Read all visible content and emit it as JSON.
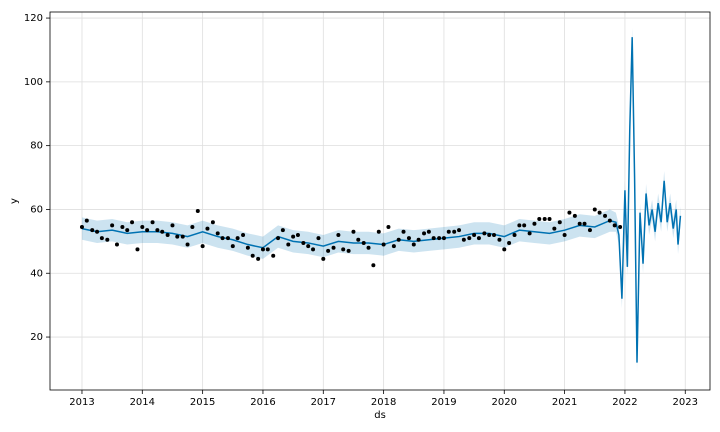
{
  "chart_data": {
    "type": "forecast",
    "xlabel": "ds",
    "ylabel": "y",
    "xlim": [
      2012.47,
      2023.41
    ],
    "ylim": [
      3.4,
      121.9
    ],
    "xticks": [
      2013,
      2014,
      2015,
      2016,
      2017,
      2018,
      2019,
      2020,
      2021,
      2022,
      2023
    ],
    "yticks": [
      20,
      40,
      60,
      80,
      100,
      120
    ],
    "grid": true,
    "points": {
      "color": "#000000",
      "x": [
        2013.0,
        2013.08,
        2013.17,
        2013.25,
        2013.33,
        2013.42,
        2013.5,
        2013.58,
        2013.67,
        2013.75,
        2013.83,
        2013.92,
        2014.0,
        2014.08,
        2014.17,
        2014.25,
        2014.33,
        2014.42,
        2014.5,
        2014.58,
        2014.67,
        2014.75,
        2014.83,
        2014.92,
        2015.0,
        2015.08,
        2015.17,
        2015.25,
        2015.33,
        2015.42,
        2015.5,
        2015.58,
        2015.67,
        2015.75,
        2015.83,
        2015.92,
        2016.0,
        2016.08,
        2016.17,
        2016.25,
        2016.33,
        2016.42,
        2016.5,
        2016.58,
        2016.67,
        2016.75,
        2016.83,
        2016.92,
        2017.0,
        2017.08,
        2017.17,
        2017.25,
        2017.33,
        2017.42,
        2017.5,
        2017.58,
        2017.67,
        2017.75,
        2017.83,
        2017.92,
        2018.0,
        2018.08,
        2018.17,
        2018.25,
        2018.33,
        2018.42,
        2018.5,
        2018.58,
        2018.67,
        2018.75,
        2018.83,
        2018.92,
        2019.0,
        2019.08,
        2019.17,
        2019.25,
        2019.33,
        2019.42,
        2019.5,
        2019.58,
        2019.67,
        2019.75,
        2019.83,
        2019.92,
        2020.0,
        2020.08,
        2020.17,
        2020.25,
        2020.33,
        2020.42,
        2020.5,
        2020.58,
        2020.67,
        2020.75,
        2020.83,
        2020.92,
        2021.0,
        2021.08,
        2021.17,
        2021.25,
        2021.33,
        2021.42,
        2021.5,
        2021.58,
        2021.67,
        2021.75,
        2021.83,
        2021.92
      ],
      "values": [
        54.5,
        56.5,
        53.5,
        53,
        51,
        50.5,
        55,
        49,
        54.5,
        53.5,
        56,
        47.5,
        54.5,
        53.5,
        56,
        53.5,
        53,
        52,
        55,
        51.5,
        51.5,
        49,
        54.5,
        59.5,
        48.5,
        54,
        56,
        52.5,
        51,
        51,
        48.5,
        51,
        52,
        48,
        45.5,
        44.5,
        47.5,
        47.5,
        45.5,
        51,
        53.5,
        49,
        51.5,
        52,
        49.5,
        48.5,
        47.5,
        51,
        44.5,
        47,
        48,
        52,
        47.5,
        47,
        53,
        50.5,
        49.5,
        48,
        42.5,
        53,
        49,
        54.5,
        48.5,
        50.5,
        53,
        51,
        49,
        50.5,
        52.5,
        53,
        51,
        51,
        51,
        53,
        53,
        53.5,
        50.5,
        51,
        52,
        51,
        52.5,
        52,
        52,
        50.5,
        47.5,
        49.5,
        52,
        55,
        55,
        52.5,
        55.5,
        57,
        57,
        57,
        54,
        56,
        52,
        59,
        58,
        55.5,
        55.5,
        53.5,
        60,
        59,
        58,
        56.5,
        55,
        54.5
      ]
    },
    "forecast": {
      "color": "#0072b2",
      "band_color": "#0072b2",
      "x": [
        2013.0,
        2013.25,
        2013.5,
        2013.75,
        2014.0,
        2014.25,
        2014.5,
        2014.75,
        2015.0,
        2015.25,
        2015.5,
        2015.75,
        2016.0,
        2016.25,
        2016.5,
        2016.75,
        2017.0,
        2017.25,
        2017.5,
        2017.75,
        2018.0,
        2018.25,
        2018.5,
        2018.75,
        2019.0,
        2019.25,
        2019.5,
        2019.75,
        2020.0,
        2020.25,
        2020.5,
        2020.75,
        2021.0,
        2021.25,
        2021.5,
        2021.75,
        2021.85,
        2021.9,
        2021.95,
        2022.0,
        2022.04,
        2022.08,
        2022.12,
        2022.16,
        2022.2,
        2022.25,
        2022.3,
        2022.35,
        2022.4,
        2022.45,
        2022.5,
        2022.55,
        2022.6,
        2022.65,
        2022.7,
        2022.75,
        2022.8,
        2022.85,
        2022.88,
        2022.92
      ],
      "values": [
        54,
        53,
        53.5,
        52.5,
        53,
        53,
        52.5,
        51.5,
        53,
        51.5,
        50.5,
        49,
        48,
        51.5,
        50,
        49.5,
        48.5,
        50,
        49.5,
        49.5,
        49,
        50.5,
        50,
        50.5,
        51,
        51.5,
        52.5,
        52.5,
        51.5,
        53.5,
        53,
        52.5,
        53.5,
        55,
        54.5,
        56.5,
        56,
        52,
        32,
        66,
        42,
        85,
        114,
        70,
        12,
        59,
        43,
        65,
        55,
        60,
        53,
        62,
        56,
        69,
        56,
        62,
        54,
        60,
        49,
        58
      ],
      "lower": [
        50.5,
        49.5,
        50,
        49,
        49.5,
        49.5,
        49,
        48,
        49.5,
        48,
        47,
        45.5,
        44.5,
        48,
        46.5,
        46,
        45,
        46.5,
        46,
        46,
        45.5,
        47,
        46.5,
        47,
        47.5,
        48,
        49,
        49,
        48,
        50,
        49.5,
        49,
        50,
        51.5,
        51,
        53,
        53,
        49,
        29,
        63,
        39,
        82,
        111,
        67,
        9,
        56,
        40,
        62,
        52,
        57,
        50,
        59,
        53,
        66,
        53,
        59,
        51,
        57,
        46,
        55
      ],
      "upper": [
        57.5,
        56.5,
        57,
        56,
        56.5,
        56.5,
        56,
        55,
        56.5,
        55,
        54,
        52.5,
        51.5,
        55,
        53.5,
        53,
        52,
        53.5,
        53,
        53,
        52.5,
        54,
        53.5,
        54,
        54.5,
        55,
        56,
        56,
        55,
        57,
        56.5,
        56,
        57,
        58.5,
        58,
        60,
        59,
        55,
        35,
        69,
        45,
        88,
        117,
        73,
        15,
        62,
        46,
        68,
        58,
        63,
        56,
        65,
        59,
        72,
        59,
        65,
        57,
        63,
        52,
        61
      ]
    }
  }
}
